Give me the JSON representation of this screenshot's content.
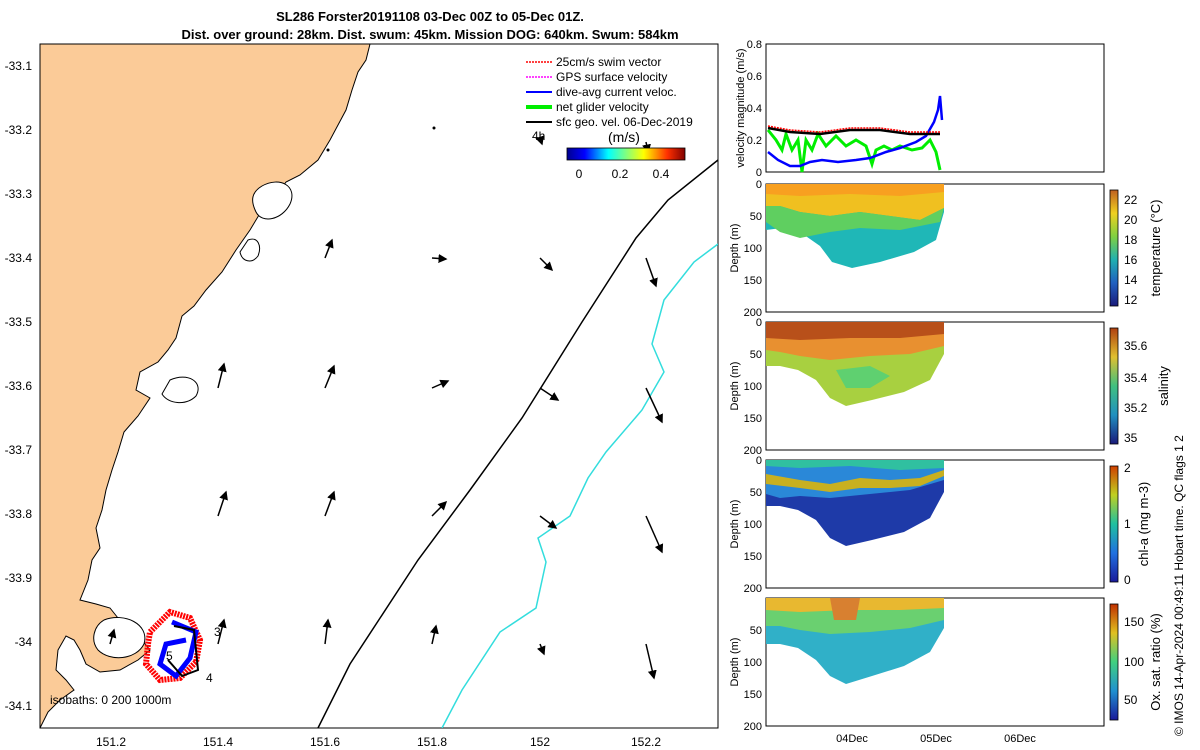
{
  "title_line1": "SL286 Forster20191108 03-Dec 00Z to 05-Dec 01Z.",
  "title_line2": "Dist. over ground: 28km. Dist. swum: 45km. Mission DOG: 640km. Swum: 584km",
  "copyright": "© IMOS 14-Apr-2024 00:49:11 Hobart time. QC flags 1  2",
  "colors": {
    "land": "#fbcb98",
    "swim": "#ff0000",
    "gps": "#ff00ff",
    "current": "#0000ff",
    "net": "#00ee00",
    "geo": "#000000",
    "isobath_200": "#000000",
    "isobath_1000": "#33dddd"
  },
  "map": {
    "x_ticks": [
      "151.2",
      "151.4",
      "151.6",
      "151.8",
      "152",
      "152.2"
    ],
    "y_ticks": [
      "-33.1",
      "-33.2",
      "-33.3",
      "-33.4",
      "-33.5",
      "-33.6",
      "-33.7",
      "-33.8",
      "-33.9",
      "-34",
      "-34.1"
    ],
    "legend": [
      {
        "label": "25cm/s swim vector",
        "color": "#ff0000"
      },
      {
        "label": "GPS surface velocity",
        "color": "#ff00ff"
      },
      {
        "label": "dive-avg current veloc.",
        "color": "#0000ff"
      },
      {
        "label": "net glider velocity",
        "color": "#00ee00"
      },
      {
        "label": "sfc geo. vel. 06-Dec-2019",
        "color": "#000000"
      }
    ],
    "colorbar_label": "(m/s)",
    "colorbar_ticks": [
      "0",
      "0.2",
      "0.4"
    ],
    "time_tag": "4h",
    "isobaths_label": "isobaths: 0   200  1000m",
    "track_labels": [
      "3",
      "5",
      "4"
    ]
  },
  "velocity_panel": {
    "ylabel": "velocity magnitude (m/s)",
    "y_ticks": [
      "0",
      "0.2",
      "0.4",
      "0.6",
      "0.8"
    ]
  },
  "profiles": [
    {
      "name": "temperature",
      "ylabel": "Depth (m)",
      "cb_label": "temperature (°C)",
      "cb_ticks": [
        "12",
        "14",
        "16",
        "18",
        "20",
        "22"
      ],
      "depth_ticks": [
        "0",
        "50",
        "100",
        "150",
        "200"
      ]
    },
    {
      "name": "salinity",
      "ylabel": "Depth (m)",
      "cb_label": "salinity",
      "cb_ticks": [
        "35",
        "35.2",
        "35.4",
        "35.6"
      ],
      "depth_ticks": [
        "0",
        "50",
        "100",
        "150",
        "200"
      ]
    },
    {
      "name": "chla",
      "ylabel": "Depth (m)",
      "cb_label": "chl-a (mg m-3)",
      "cb_ticks": [
        "0",
        "1",
        "2"
      ],
      "depth_ticks": [
        "0",
        "50",
        "100",
        "150",
        "200"
      ]
    },
    {
      "name": "oxygen",
      "ylabel": "Depth (m)",
      "cb_label": "Ox. sat. ratio (%)",
      "cb_ticks": [
        "50",
        "100",
        "150"
      ],
      "depth_ticks": [
        "50",
        "100",
        "150",
        "200"
      ]
    }
  ],
  "date_ticks": [
    "04Dec",
    "05Dec",
    "06Dec"
  ]
}
